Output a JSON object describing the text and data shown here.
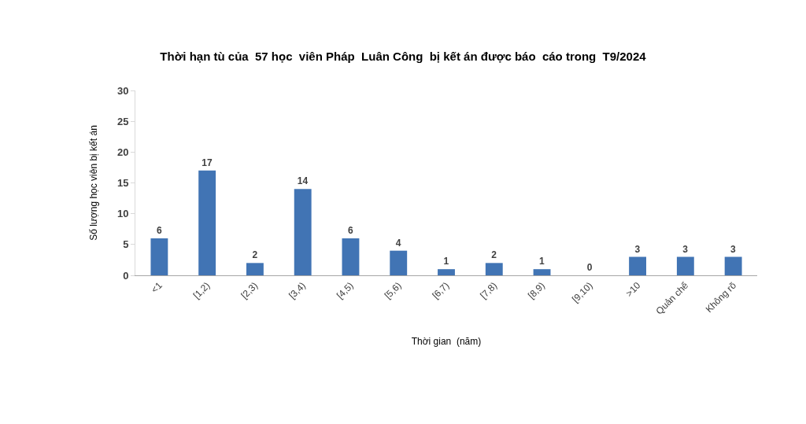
{
  "chart_data": {
    "type": "bar",
    "title": "Thời hạn tù của  57 học  viên Pháp  Luân Công  bị kết án được báo  cáo trong  T9/2024",
    "xlabel": "Thời gian  (năm)",
    "ylabel": "Số lượng học viên bị kết án",
    "categories": [
      "<1",
      "[1,2)",
      "[2,3)",
      "[3,4)",
      "[4,5)",
      "[5,6)",
      "[6,7)",
      "[7,8)",
      "[8,9)",
      "[9,10)",
      ">10",
      "Quản chế",
      "Không rõ"
    ],
    "values": [
      6,
      17,
      2,
      14,
      6,
      4,
      1,
      2,
      1,
      0,
      3,
      3,
      3
    ],
    "color": "#4174b4",
    "ylim": [
      0,
      30
    ],
    "yticks": [
      0,
      5,
      10,
      15,
      20,
      25,
      30
    ],
    "data_labels": true
  }
}
